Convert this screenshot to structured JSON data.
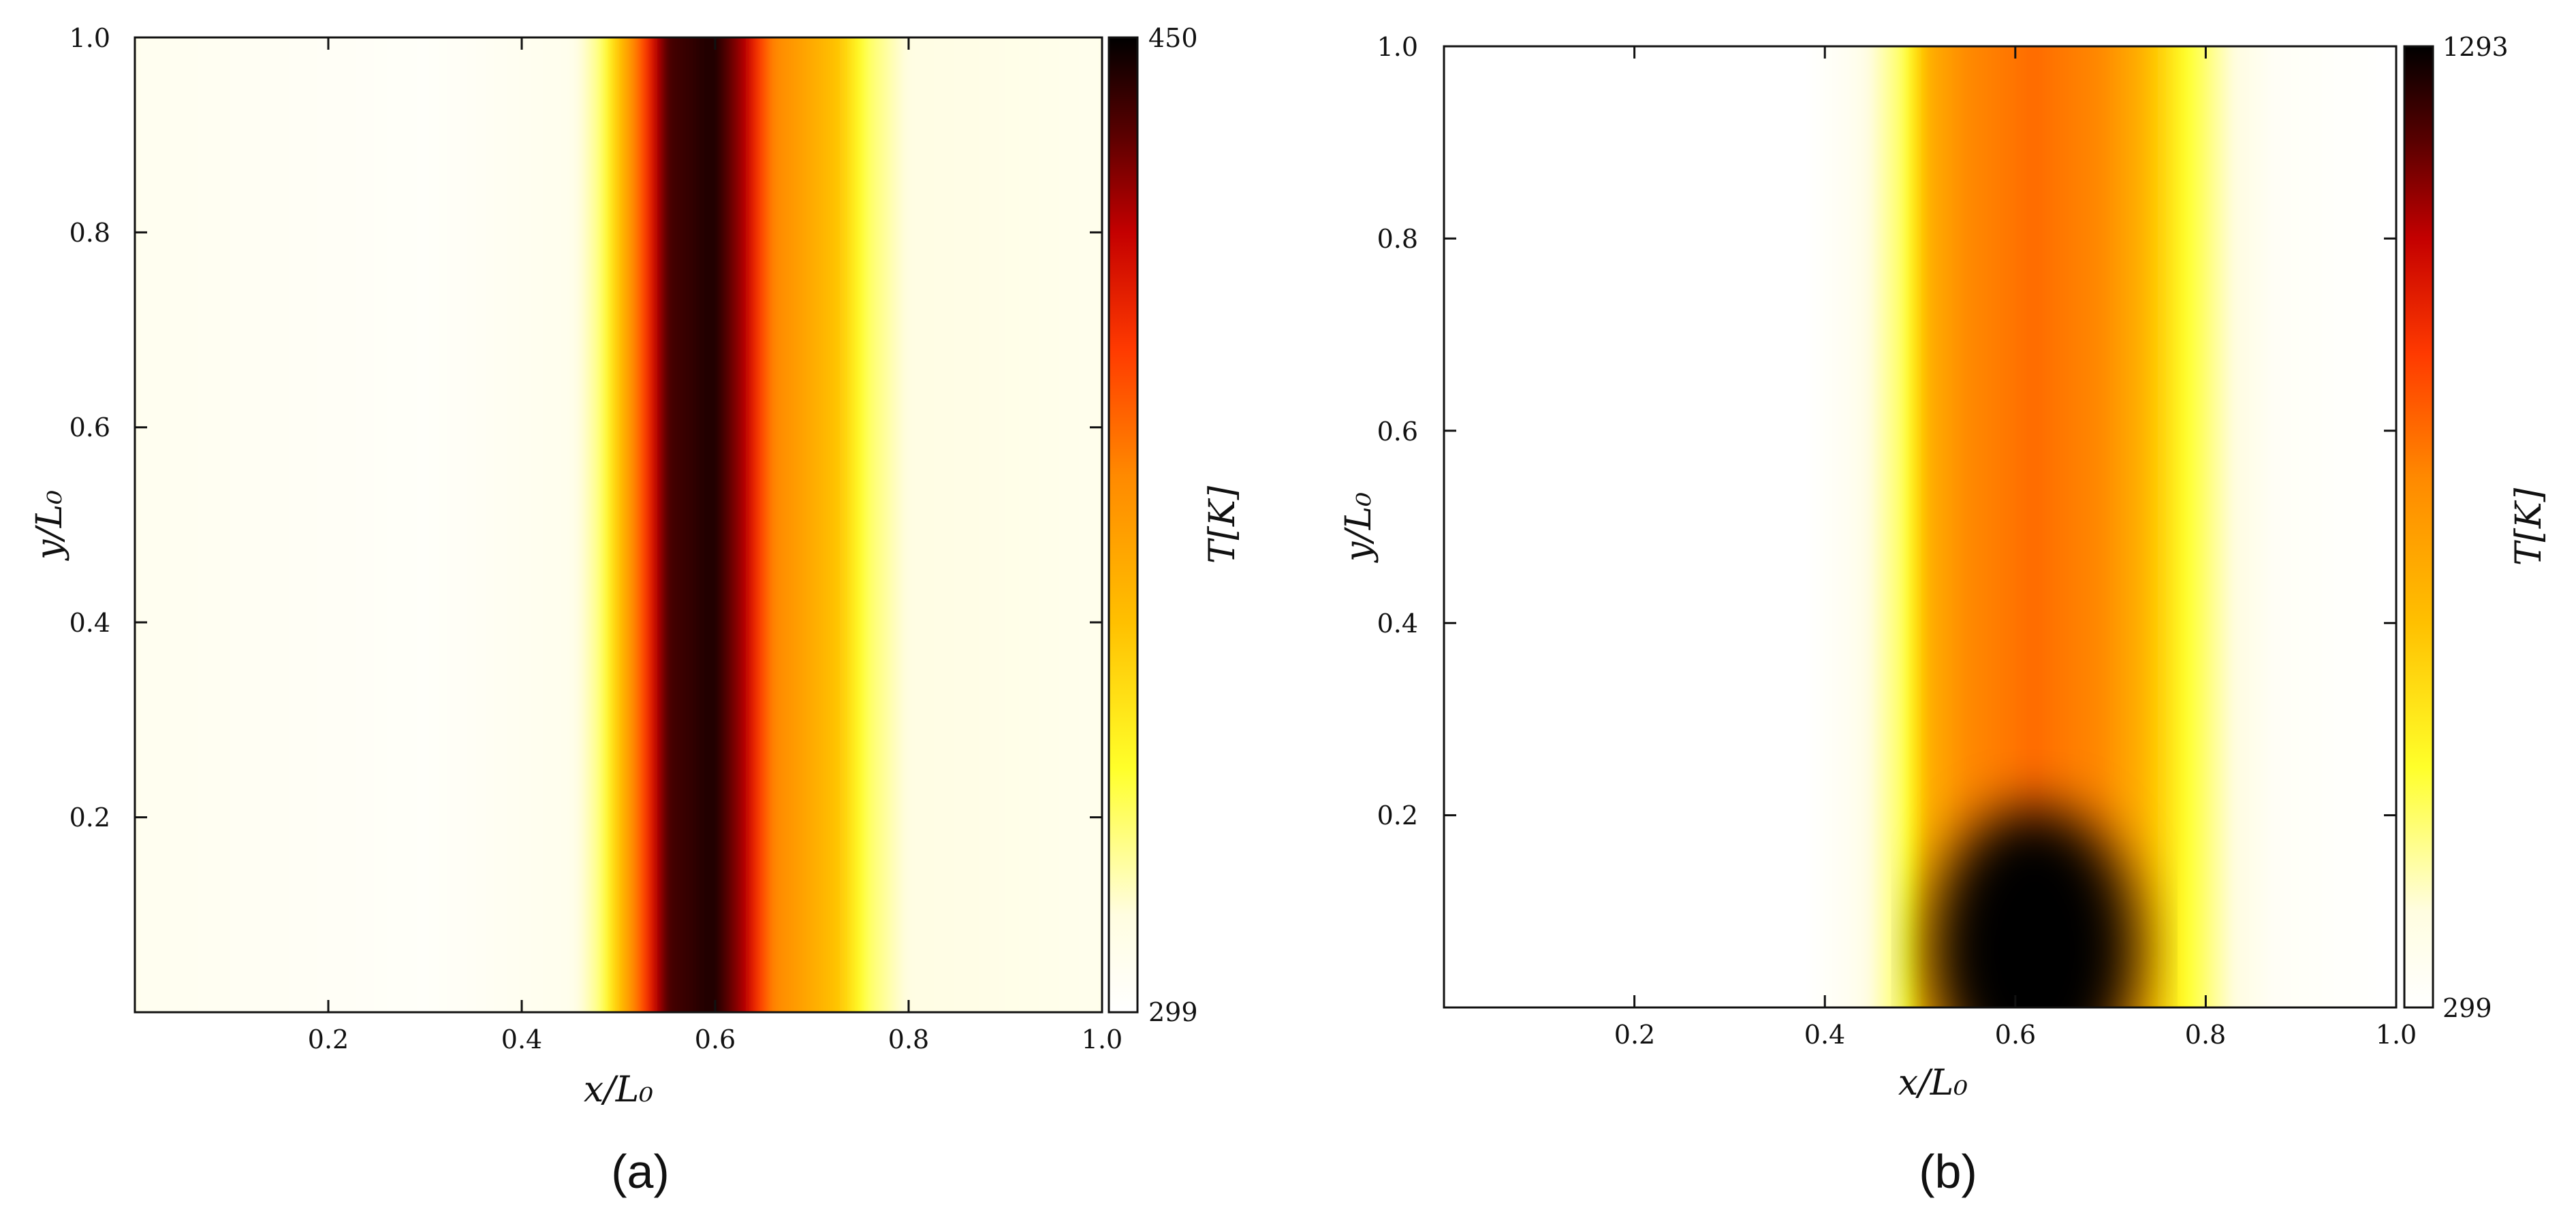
{
  "colors": {
    "colormap": [
      "#ffffff",
      "#fffde0",
      "#ffff2a",
      "#ffc000",
      "#ff8a00",
      "#ff3a00",
      "#c40000",
      "#5a0000",
      "#000000"
    ],
    "frame": "#111111"
  },
  "chart_data": [
    {
      "type": "heatmap",
      "panel_label": "(a)",
      "xlabel": "x/L₀",
      "ylabel": "y/L₀",
      "xlim": [
        0.0,
        1.0
      ],
      "ylim": [
        0.0,
        1.0
      ],
      "x_ticks": [
        0.2,
        0.4,
        0.6,
        0.8,
        1.0
      ],
      "x_tick_labels": [
        "0.2",
        "0.4",
        "0.6",
        "0.8",
        "1.0"
      ],
      "y_ticks": [
        0.2,
        0.4,
        0.6,
        0.8,
        1.0
      ],
      "y_tick_labels": [
        "0.2",
        "0.4",
        "0.6",
        "0.8",
        "1.0"
      ],
      "colorbar": {
        "label": "T[K]",
        "min": 299,
        "max": 450,
        "min_label": "299",
        "max_label": "450"
      },
      "grid": false,
      "x_profile": {
        "x": [
          0.0,
          0.3,
          0.45,
          0.48,
          0.52,
          0.55,
          0.6,
          0.63,
          0.66,
          0.7,
          0.73,
          0.76,
          0.8,
          1.0
        ],
        "T_fraction": [
          0.05,
          0.02,
          0.06,
          0.18,
          0.6,
          0.92,
          0.97,
          0.82,
          0.56,
          0.46,
          0.38,
          0.2,
          0.09,
          0.06
        ]
      },
      "peak_x": 0.59
    },
    {
      "type": "heatmap",
      "panel_label": "(b)",
      "xlabel": "x/L₀",
      "ylabel": "y/L₀",
      "xlim": [
        0.0,
        1.0
      ],
      "ylim": [
        0.0,
        1.0
      ],
      "x_ticks": [
        0.2,
        0.4,
        0.6,
        0.8,
        1.0
      ],
      "x_tick_labels": [
        "0.2",
        "0.4",
        "0.6",
        "0.8",
        "1.0"
      ],
      "y_ticks": [
        0.2,
        0.4,
        0.6,
        0.8,
        1.0
      ],
      "y_tick_labels": [
        "0.2",
        "0.4",
        "0.6",
        "0.8",
        "1.0"
      ],
      "colorbar": {
        "label": "T[K]",
        "min": 299,
        "max": 1293,
        "min_label": "299",
        "max_label": "1293"
      },
      "grid": false,
      "x_profile": {
        "x": [
          0.0,
          0.38,
          0.43,
          0.48,
          0.51,
          0.55,
          0.62,
          0.69,
          0.73,
          0.78,
          0.83,
          0.87,
          1.0
        ],
        "T_fraction": [
          0.0,
          0.0,
          0.05,
          0.2,
          0.45,
          0.55,
          0.6,
          0.55,
          0.45,
          0.25,
          0.1,
          0.03,
          0.0
        ]
      },
      "hot_core": {
        "x_center": 0.62,
        "y_center": 0.06,
        "peak_fraction": 1.0
      }
    }
  ]
}
